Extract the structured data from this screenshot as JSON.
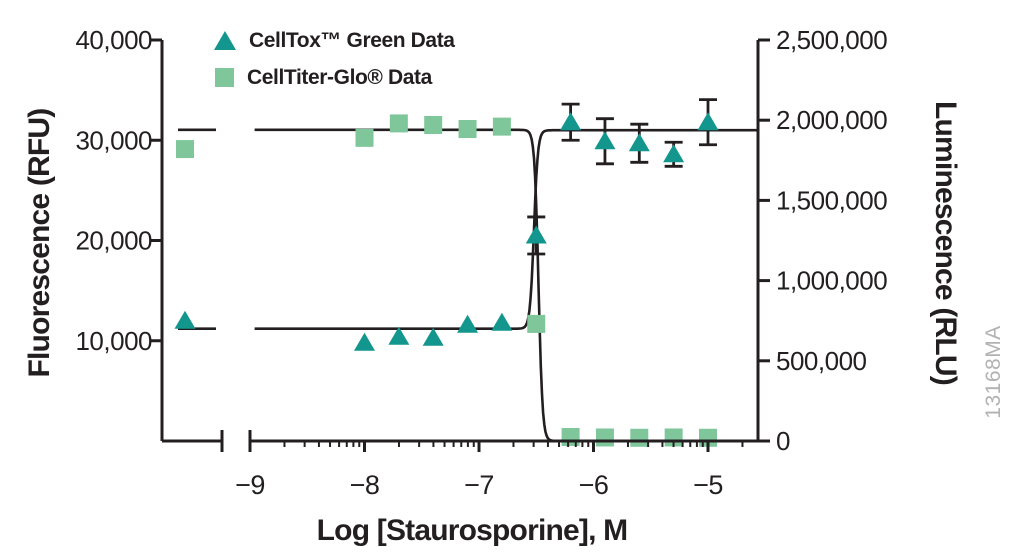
{
  "page": {
    "background": "#ffffff",
    "watermark": "13168MA"
  },
  "legend": {
    "items": [
      {
        "label": "CellTox™ Green Data",
        "marker": "triangle",
        "color": "#12968d"
      },
      {
        "label": "CellTiter-Glo® Data",
        "marker": "square",
        "color": "#7fc69b"
      }
    ]
  },
  "chart_data": {
    "type": "scatter",
    "title": "",
    "xlabel": "Log [Staurosporine], M",
    "x_axis": {
      "scale": "log10",
      "major_ticks": [
        -9,
        -8,
        -7,
        -6,
        -5
      ],
      "tick_labels": [
        "−9",
        "−8",
        "−7",
        "−6",
        "−5"
      ],
      "range": [
        -9,
        -4.56
      ],
      "axis_break_before": -9,
      "minor_ticks": "log-decade (2-9) between majors",
      "grid": false
    },
    "y_left": {
      "label": "Fluorescence (RFU)",
      "range": [
        0,
        40000
      ],
      "ticks": [
        10000,
        20000,
        30000,
        40000
      ],
      "tick_labels": [
        "10,000",
        "20,000",
        "30,000",
        "40,000"
      ]
    },
    "y_right": {
      "label": "Luminescence (RLU)",
      "range": [
        0,
        2500000
      ],
      "ticks": [
        0,
        500000,
        1000000,
        1500000,
        2000000,
        2500000
      ],
      "tick_labels": [
        "0",
        "500,000",
        "1,000,000",
        "1,500,000",
        "2,000,000",
        "2,500,000"
      ]
    },
    "series": [
      {
        "name": "CellTox™ Green Data",
        "axis": "left",
        "marker": "triangle",
        "color": "#12968d",
        "control_point": {
          "y": 12000
        },
        "x": [
          -8.0,
          -7.7,
          -7.4,
          -7.1,
          -6.8,
          -6.5,
          -6.2,
          -5.9,
          -5.6,
          -5.3,
          -5.0
        ],
        "y": [
          9800,
          10400,
          10300,
          11600,
          11800,
          20500,
          31800,
          29900,
          29700,
          28600,
          31800
        ],
        "yerr": [
          0,
          0,
          0,
          0,
          0,
          1850,
          1800,
          2250,
          1900,
          1200,
          2250
        ]
      },
      {
        "name": "CellTiter-Glo® Data",
        "axis": "right",
        "marker": "square",
        "color": "#7fc69b",
        "control_point": {
          "y": 1820000
        },
        "x": [
          -8.0,
          -7.7,
          -7.4,
          -7.1,
          -6.8,
          -6.5,
          -6.2,
          -5.9,
          -5.6,
          -5.3,
          -5.0
        ],
        "y": [
          1890000,
          1980000,
          1970000,
          1945000,
          1960000,
          730000,
          25000,
          22000,
          20000,
          22000,
          20000
        ],
        "yerr": [
          0,
          0,
          0,
          0,
          0,
          0,
          0,
          0,
          0,
          0,
          0
        ]
      }
    ],
    "fits": [
      {
        "series": 0,
        "axis": "left",
        "bottom": 11200,
        "top": 31000,
        "log_ec50": -6.52,
        "hill": 25
      },
      {
        "series": 1,
        "axis": "right",
        "bottom": 0,
        "top": 1940000,
        "log_ec50": -6.48,
        "hill": -25
      }
    ],
    "legend_position": "top-left-inside",
    "axis_color": "#231f20"
  }
}
